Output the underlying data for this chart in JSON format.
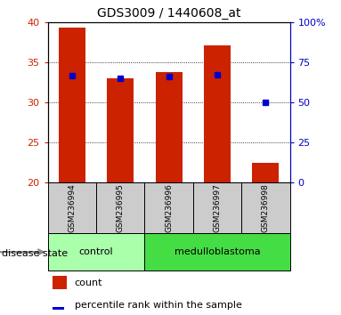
{
  "title": "GDS3009 / 1440608_at",
  "samples": [
    "GSM236994",
    "GSM236995",
    "GSM236996",
    "GSM236997",
    "GSM236998"
  ],
  "count_values": [
    39.3,
    33.0,
    33.8,
    37.1,
    22.5
  ],
  "percentile_values": [
    66.5,
    65.0,
    66.0,
    67.0,
    50.0
  ],
  "ymin": 20,
  "ymax": 40,
  "yticks": [
    20,
    25,
    30,
    35,
    40
  ],
  "y2min": 0,
  "y2max": 100,
  "y2ticks": [
    0,
    25,
    50,
    75,
    100
  ],
  "y2ticklabels": [
    "0",
    "25",
    "50",
    "75",
    "100%"
  ],
  "bar_color": "#cc2200",
  "dot_color": "#0000cc",
  "control_color": "#aaffaa",
  "medulloblastoma_color": "#44dd44",
  "disease_label": "disease state",
  "legend_count_label": "count",
  "legend_percentile_label": "percentile rank within the sample",
  "tick_area_bg": "#cccccc",
  "bar_width": 0.55,
  "groups": [
    {
      "label": "control",
      "start": 0,
      "end": 1
    },
    {
      "label": "medulloblastoma",
      "start": 2,
      "end": 4
    }
  ]
}
